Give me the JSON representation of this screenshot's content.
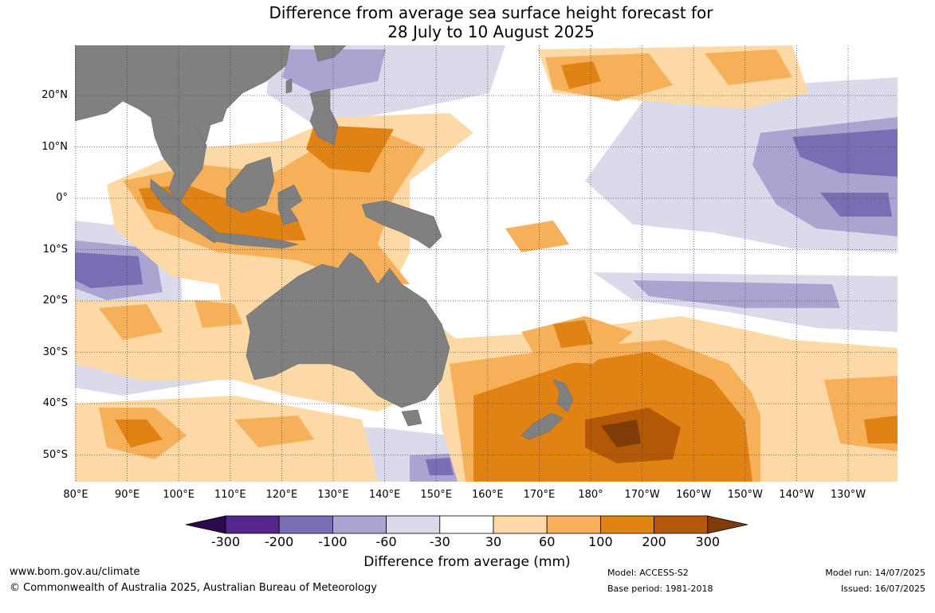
{
  "title": {
    "line1": "Difference from average sea surface height forecast for",
    "line2": "28 July to 10 August 2025"
  },
  "map": {
    "lat_labels": [
      "20°N",
      "10°N",
      "0°",
      "10°S",
      "20°S",
      "30°S",
      "40°S",
      "50°S"
    ],
    "lon_labels": [
      "80°E",
      "90°E",
      "100°E",
      "110°E",
      "120°E",
      "130°E",
      "140°E",
      "150°E",
      "160°E",
      "170°E",
      "180°",
      "170°W",
      "160°W",
      "150°W",
      "140°W",
      "130°W"
    ],
    "land_color": "#808080",
    "grid_style": "dotted"
  },
  "legend": {
    "title": "Difference from average (mm)",
    "tick_labels": [
      "-300",
      "-200",
      "-100",
      "-60",
      "-30",
      "30",
      "60",
      "100",
      "200",
      "300"
    ],
    "colors": [
      "#2d0a4e",
      "#54278f",
      "#7b6db3",
      "#aaa4d0",
      "#dadaeb",
      "#ffffff",
      "#fdd9a6",
      "#f6b05a",
      "#e08214",
      "#b35806",
      "#7f3b08"
    ]
  },
  "footer": {
    "url": "www.bom.gov.au/climate",
    "copyright": "© Commonwealth of Australia 2025, Australian Bureau of Meteorology",
    "model": "Model: ACCESS-S2",
    "base_period": "Base period: 1981-2018",
    "model_run": "Model run: 14/07/2025",
    "issued": "Issued: 16/07/2025"
  }
}
